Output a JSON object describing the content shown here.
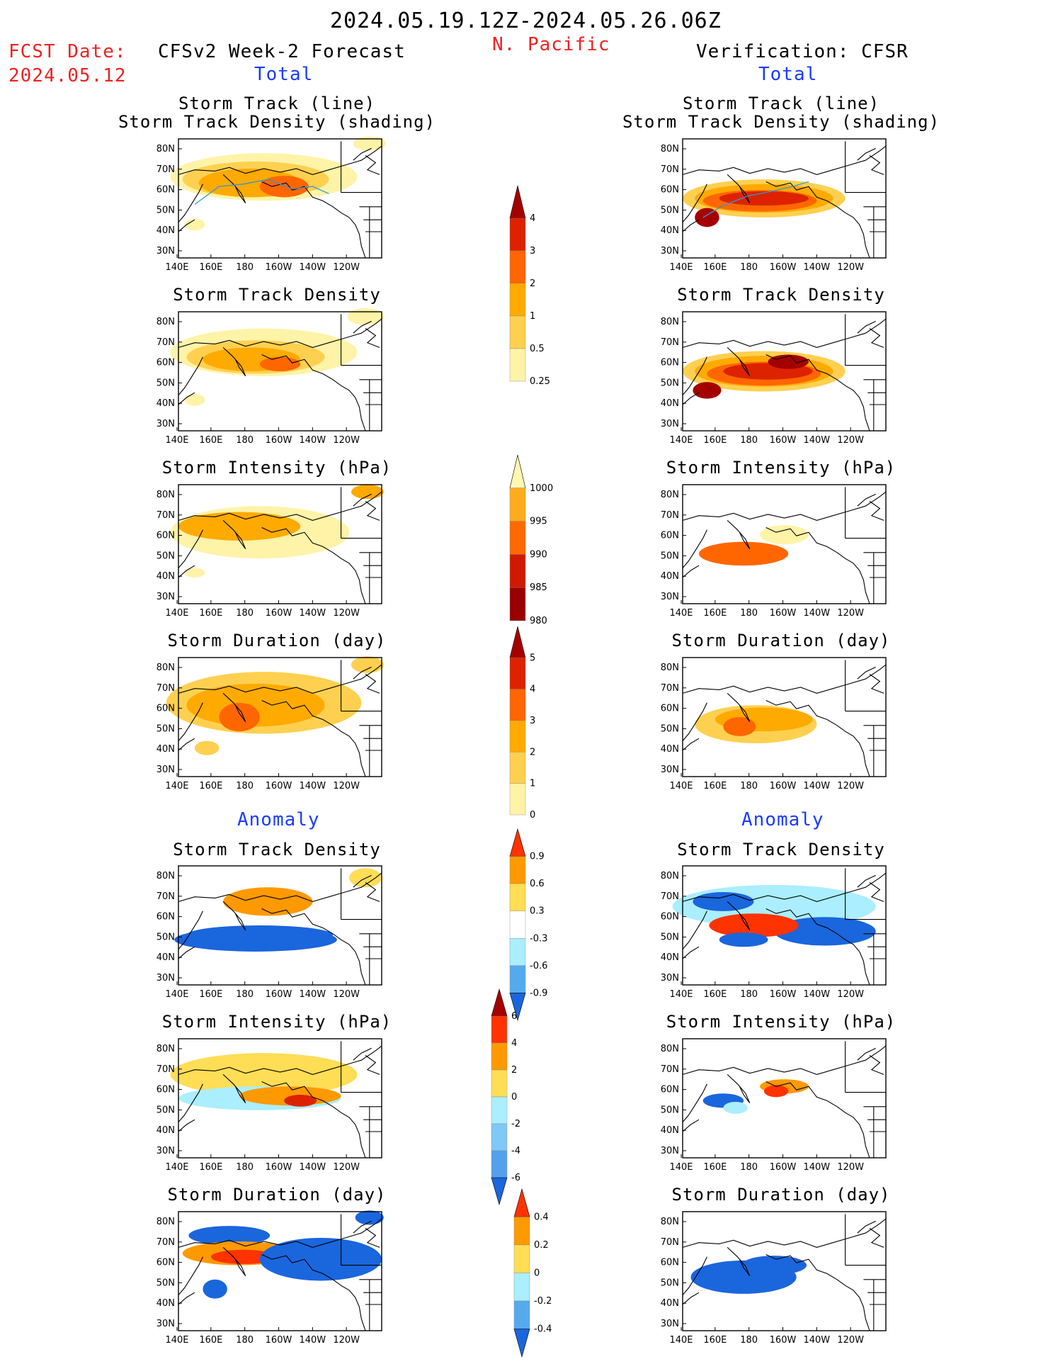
{
  "header": {
    "date_range": "2024.05.19.12Z-2024.05.26.06Z",
    "region": "N. Pacific",
    "fcst_label": "FCST Date:",
    "fcst_date": "2024.05.12",
    "left_title": "CFSv2 Week-2 Forecast",
    "right_title": "Verification: CFSR",
    "total_label": "Total",
    "anomaly_label": "Anomaly"
  },
  "panels": {
    "track": [
      "Storm Track (line)",
      "Storm Track Density (shading)"
    ],
    "density": "Storm Track Density",
    "intensity": "Storm Intensity (hPa)",
    "duration": "Storm Duration (day)"
  },
  "axes": {
    "lon_labels": [
      "140E",
      "160E",
      "180",
      "160W",
      "140W",
      "120W"
    ],
    "lat_labels": [
      "80N",
      "70N",
      "60N",
      "50N",
      "40N",
      "30N"
    ]
  },
  "colorbars": {
    "density_total": {
      "labels": [
        "4",
        "3",
        "2",
        "1",
        "0.5",
        "0.25"
      ],
      "colors": [
        "#a50000",
        "#dd2200",
        "#ff6600",
        "#ffaa00",
        "#ffd050",
        "#fff3a8"
      ]
    },
    "intensity_total": {
      "labels": [
        "1000",
        "995",
        "990",
        "985",
        "980"
      ],
      "colors": [
        "#fff6b0",
        "#ffab1e",
        "#ff6a00",
        "#d01a00",
        "#9a0000"
      ]
    },
    "duration_total": {
      "labels": [
        "5",
        "4",
        "3",
        "2",
        "1",
        "0"
      ],
      "colors": [
        "#a50000",
        "#dd2200",
        "#ff6600",
        "#ffaa00",
        "#ffd050",
        "#fff3a8"
      ]
    },
    "density_anom": {
      "labels": [
        "0.9",
        "0.6",
        "0.3",
        "-0.3",
        "-0.6",
        "-0.9"
      ],
      "colors": [
        "#ff3300",
        "#ff9900",
        "#ffdd55",
        "#ffffff",
        "#aaeeff",
        "#55aaee",
        "#1a66dd"
      ]
    },
    "intensity_anom": {
      "labels": [
        "6",
        "4",
        "2",
        "0",
        "-2",
        "-4",
        "-6"
      ],
      "colors": [
        "#a50000",
        "#ff3300",
        "#ff9900",
        "#ffdd55",
        "#aaeeff",
        "#80c8f5",
        "#55a0ee",
        "#1a66dd"
      ]
    },
    "duration_anom": {
      "labels": [
        "0.4",
        "0.2",
        "0",
        "-0.2",
        "-0.4"
      ],
      "colors": [
        "#ff3300",
        "#ff9900",
        "#ffdd55",
        "#aaeeff",
        "#55aaee",
        "#1a66dd"
      ]
    }
  }
}
